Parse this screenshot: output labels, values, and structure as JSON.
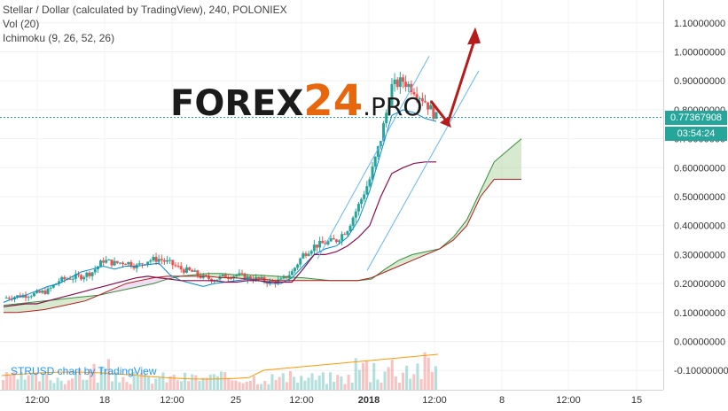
{
  "legend": {
    "symbol": "Stellar / Dollar (calculated by TradingView), 240, POLONIEX",
    "vol": "Vol (20)",
    "ichimoku": "Ichimoku (9, 26, 52, 26)"
  },
  "logo": {
    "prefix": "FOREX",
    "number": "24",
    "suffix": ".PRO"
  },
  "watermark": "STRUSD chart by TradingView",
  "price_now": "0.77367908",
  "countdown": "03:54:24",
  "colors": {
    "up": "#26a69a",
    "down": "#ef5350",
    "cloud_up": "#b6d7a8",
    "cloud_down": "#e1c4e9",
    "arrow": "#b71c1c",
    "channel": "#64b5f6"
  },
  "chart_data": {
    "type": "line",
    "title": "Stellar / Dollar (calculated by TradingView), 240, POLONIEX",
    "xlabel": "",
    "ylabel": "",
    "ylim": [
      -0.15,
      1.13
    ],
    "x_ticks": [
      "12:00",
      "18",
      "12:00",
      "25",
      "12:00",
      "2018",
      "12:00",
      "8",
      "12:00",
      "15"
    ],
    "y_ticks": [
      "1.10000000",
      "1.00000000",
      "0.90000000",
      "0.80000000",
      "0.70000000",
      "0.60000000",
      "0.50000000",
      "0.40000000",
      "0.30000000",
      "0.20000000",
      "0.10000000",
      "0.00000000",
      "-0.10000000"
    ],
    "last_price": 0.77367908,
    "grid": true,
    "legend": "top-left",
    "series": [
      {
        "values": [
          0.15,
          0.155,
          0.16,
          0.165,
          0.175,
          0.21,
          0.22,
          0.225,
          0.24,
          0.28,
          0.27,
          0.275,
          0.26,
          0.28,
          0.285,
          0.27,
          0.25,
          0.24,
          0.22,
          0.215,
          0.225,
          0.23,
          0.22,
          0.215,
          0.205,
          0.21,
          0.24,
          0.3,
          0.33,
          0.34,
          0.35,
          0.39,
          0.47,
          0.56,
          0.7,
          0.88,
          0.9,
          0.87,
          0.83,
          0.773
        ]
      },
      {
        "values": [
          0.135,
          0.15,
          0.16,
          0.175,
          0.19,
          0.2,
          0.22,
          0.24,
          0.25,
          0.26,
          0.25,
          0.26,
          0.26,
          0.265,
          0.27,
          0.23,
          0.21,
          0.2,
          0.19,
          0.2,
          0.205,
          0.21,
          0.215,
          0.21,
          0.2,
          0.2,
          0.22,
          0.26,
          0.3,
          0.32,
          0.33,
          0.36,
          0.42,
          0.52,
          0.65,
          0.78,
          0.8,
          0.79,
          0.77,
          0.76
        ]
      },
      {
        "values": [
          0.12,
          0.125,
          0.13,
          0.13,
          0.14,
          0.15,
          0.16,
          0.17,
          0.18,
          0.19,
          0.2,
          0.21,
          0.22,
          0.225,
          0.22,
          0.215,
          0.21,
          0.21,
          0.21,
          0.21,
          0.205,
          0.205,
          0.21,
          0.21,
          0.205,
          0.205,
          0.205,
          0.25,
          0.3,
          0.3,
          0.31,
          0.33,
          0.36,
          0.4,
          0.5,
          0.58,
          0.6,
          0.615,
          0.62,
          0.62
        ]
      },
      {
        "values": [
          0.125,
          0.13,
          0.135,
          0.14,
          0.145,
          0.15,
          0.155,
          0.16,
          0.17,
          0.18,
          0.19,
          0.2,
          0.215,
          0.225,
          0.23,
          0.235,
          0.235,
          0.23,
          0.23,
          0.228,
          0.225,
          0.222,
          0.22,
          0.215,
          0.21,
          0.21,
          0.21,
          0.215,
          0.25,
          0.28,
          0.3,
          0.31,
          0.32,
          0.36,
          0.42,
          0.52,
          0.62,
          0.66,
          0.7
        ]
      },
      {
        "values": [
          0.1,
          0.1,
          0.105,
          0.11,
          0.12,
          0.13,
          0.14,
          0.16,
          0.18,
          0.2,
          0.21,
          0.22,
          0.225,
          0.225,
          0.225,
          0.225,
          0.22,
          0.22,
          0.215,
          0.215,
          0.21,
          0.21,
          0.21,
          0.21,
          0.21,
          0.21,
          0.21,
          0.22,
          0.24,
          0.26,
          0.28,
          0.3,
          0.32,
          0.35,
          0.4,
          0.5,
          0.56,
          0.56,
          0.56
        ]
      }
    ]
  }
}
